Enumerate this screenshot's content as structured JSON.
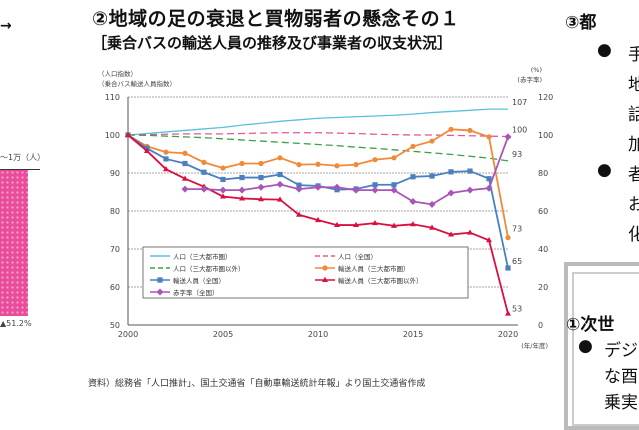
{
  "header": {
    "title": "②地域の足の衰退と買物弱者の懸念その１",
    "subtitle": "［乗合バスの輸送人員の推移及び事業者の収支状況］"
  },
  "left_fragment": {
    "arrow": "→",
    "unit_label": "～1万（人）",
    "percent_label": "▲51.2%",
    "bar_color": "#e94c9a"
  },
  "right_fragment": {
    "heading3": "③都",
    "bullet": "●",
    "lines_a": [
      "手",
      "地",
      "話",
      "加"
    ],
    "lines_b": [
      "者",
      "お",
      "化"
    ],
    "heading1": "①次世",
    "lines_c": [
      "デジ",
      "な酉",
      "乗実"
    ]
  },
  "source_note": "資料）総務省「人口推計」、国土交通省「自動車輸送統計年報」より国土交通省作成",
  "chart_data": {
    "type": "line",
    "title": "",
    "ylabel_left": [
      "（人口指数）",
      "（乗合バス輸送人員指数）"
    ],
    "ylabel_right": [
      "(%)",
      "(赤字率)"
    ],
    "xlabel": "(年/年度)",
    "x": [
      2000,
      2001,
      2002,
      2003,
      2004,
      2005,
      2006,
      2007,
      2008,
      2009,
      2010,
      2011,
      2012,
      2013,
      2014,
      2015,
      2016,
      2017,
      2018,
      2019,
      2020
    ],
    "xticks": [
      2000,
      2005,
      2010,
      2015,
      2020
    ],
    "ylim_left": [
      50,
      110
    ],
    "yticks_left": [
      50,
      60,
      70,
      80,
      90,
      100,
      110
    ],
    "ylim_right": [
      0,
      120
    ],
    "yticks_right": [
      0,
      20,
      40,
      60,
      80,
      100,
      120
    ],
    "grid": true,
    "legend": "inside-bottom-left",
    "series": [
      {
        "name": "人口（三大都市圏）",
        "axis": "left",
        "style": "solid",
        "marker": "none",
        "color": "#5bc0de",
        "values": [
          100,
          100.4,
          100.8,
          101.2,
          101.6,
          102,
          102.6,
          103.1,
          103.6,
          104,
          104.4,
          104.6,
          104.8,
          105,
          105.2,
          105.5,
          105.9,
          106.2,
          106.5,
          106.8,
          106.8
        ],
        "end_label": "107"
      },
      {
        "name": "人口（全国）",
        "axis": "left",
        "style": "dashed",
        "marker": "none",
        "color": "#e8559a",
        "values": [
          100,
          100.1,
          100.2,
          100.3,
          100.3,
          100.3,
          100.4,
          100.5,
          100.6,
          100.6,
          100.6,
          100.5,
          100.4,
          100.2,
          100.1,
          100,
          100,
          99.9,
          99.8,
          99.7,
          99.6
        ],
        "end_label": "100"
      },
      {
        "name": "人口（三大都市圏以外）",
        "axis": "left",
        "style": "dashed",
        "marker": "none",
        "color": "#3aa04a",
        "values": [
          100,
          99.9,
          99.7,
          99.5,
          99.3,
          99,
          98.7,
          98.4,
          98.1,
          97.8,
          97.5,
          97.2,
          96.8,
          96.5,
          96.1,
          95.7,
          95.3,
          94.9,
          94.4,
          93.9,
          93.2
        ],
        "end_label": "93"
      },
      {
        "name": "輸送人員（三大都市圏）",
        "axis": "left",
        "style": "solid",
        "marker": "circle",
        "color": "#f08a3a",
        "values": [
          100,
          97,
          95.5,
          95.2,
          92.8,
          91.3,
          92.5,
          92.5,
          94,
          92.2,
          92.3,
          91.9,
          92.2,
          93.5,
          94,
          97,
          98.4,
          101.5,
          101.2,
          99.5,
          73
        ],
        "end_label": "73"
      },
      {
        "name": "輸送人員（全国）",
        "axis": "left",
        "style": "solid",
        "marker": "square",
        "color": "#4a7fc0",
        "values": [
          100,
          96.5,
          93.7,
          92.5,
          90.2,
          88.3,
          88.8,
          88.8,
          89.6,
          86.8,
          86.6,
          85.6,
          85.8,
          86.9,
          86.9,
          89,
          89.2,
          90.3,
          90.5,
          88.5,
          65
        ],
        "end_label": "65"
      },
      {
        "name": "輸送人員（三大都市圏以外）",
        "axis": "left",
        "style": "solid",
        "marker": "triangle",
        "color": "#d8103f",
        "values": [
          100,
          95.8,
          91,
          88.5,
          86.4,
          83.8,
          83.3,
          83.1,
          83,
          79,
          77.6,
          76.3,
          76.3,
          76.8,
          76.1,
          76.5,
          75.6,
          73.8,
          74.3,
          72.3,
          53
        ],
        "end_label": "53"
      },
      {
        "name": "赤字率（全国）",
        "axis": "right",
        "style": "solid",
        "marker": "diamond",
        "color": "#a855b5",
        "values": [
          null,
          null,
          null,
          71.5,
          71.5,
          71,
          71,
          72.5,
          74,
          71.5,
          72.5,
          72.5,
          71,
          71,
          71,
          65,
          63.5,
          69.5,
          71,
          72,
          99
        ],
        "end_label": ""
      }
    ]
  }
}
